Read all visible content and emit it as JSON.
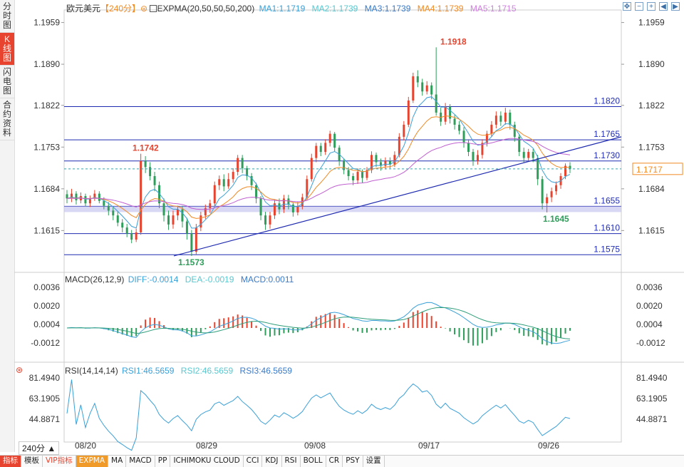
{
  "side_tabs": [
    {
      "label": "分时图",
      "active": false
    },
    {
      "label": "K线图",
      "active": true
    },
    {
      "label": "闪电图",
      "active": false
    },
    {
      "label": "合约资料",
      "active": false
    }
  ],
  "header": {
    "symbol": "欧元美元",
    "period": "【240分】",
    "indicator": "EXPMA(20,50,50,50,200)",
    "ma1": "MA1:1.1719",
    "ma2": "MA2:1.1739",
    "ma3": "MA3:1.1739",
    "ma4": "MA4:1.1739",
    "ma5": "MA5:1.1715"
  },
  "macd_header": {
    "name": "MACD(26,12,9)",
    "diff": "DIFF:-0.0014",
    "dea": "DEA:-0.0019",
    "macd": "MACD:0.0011"
  },
  "rsi_header": {
    "name": "RSI(14,14,14)",
    "rsi1": "RSI1:46.5659",
    "rsi2": "RSI2:46.5659",
    "rsi3": "RSI3:46.5659"
  },
  "colors": {
    "up": "#e8432e",
    "down": "#2e9e5a",
    "level": "#1f2bb0",
    "ma_blue": "#3aa0d8",
    "ma_orange": "#f08a24",
    "ma_purple": "#c060d0",
    "last_price": "#f08a24"
  },
  "chart_data": {
    "type": "candlestick",
    "price_axis": {
      "ticks": [
        "1.1959",
        "1.1890",
        "1.1822",
        "1.1753",
        "1.1684",
        "1.1615"
      ],
      "ylim": [
        1.1573,
        1.1959
      ]
    },
    "date_labels": [
      "08/20",
      "08/29",
      "09/08",
      "09/17",
      "09/26"
    ],
    "levels": [
      "1.1820",
      "1.1765",
      "1.1730",
      "1.1655",
      "1.1610",
      "1.1575"
    ],
    "annotations": {
      "high": "1.1918",
      "low": "1.1573",
      "left_peak": "1.1742",
      "recent_low": "1.1645"
    },
    "last_price": "1.1717",
    "macd_axis": {
      "ticks": [
        "0.0036",
        "0.0020",
        "0.0004",
        "-0.0012"
      ]
    },
    "rsi_axis": {
      "ticks": [
        "81.4940",
        "63.1905",
        "44.8871"
      ]
    },
    "candles": [
      [
        1.1675,
        1.1668,
        1.1682,
        1.166
      ],
      [
        1.1668,
        1.1676,
        1.1684,
        1.1662
      ],
      [
        1.1676,
        1.1665,
        1.168,
        1.1658
      ],
      [
        1.1665,
        1.1672,
        1.1678,
        1.166
      ],
      [
        1.1672,
        1.166,
        1.1676,
        1.1655
      ],
      [
        1.166,
        1.1668,
        1.1673,
        1.1654
      ],
      [
        1.1668,
        1.1676,
        1.1682,
        1.1664
      ],
      [
        1.1676,
        1.1664,
        1.168,
        1.166
      ],
      [
        1.1664,
        1.1656,
        1.167,
        1.165
      ],
      [
        1.1656,
        1.1648,
        1.1662,
        1.164
      ],
      [
        1.1648,
        1.164,
        1.1654,
        1.1632
      ],
      [
        1.164,
        1.1628,
        1.1646,
        1.1622
      ],
      [
        1.1628,
        1.162,
        1.1634,
        1.1612
      ],
      [
        1.162,
        1.161,
        1.1626,
        1.1604
      ],
      [
        1.161,
        1.16,
        1.1616,
        1.1594
      ],
      [
        1.16,
        1.1612,
        1.1618,
        1.1596
      ],
      [
        1.1612,
        1.173,
        1.1742,
        1.1608
      ],
      [
        1.173,
        1.172,
        1.1738,
        1.171
      ],
      [
        1.172,
        1.1705,
        1.1728,
        1.1698
      ],
      [
        1.1705,
        1.169,
        1.1712,
        1.168
      ],
      [
        1.169,
        1.166,
        1.1696,
        1.1652
      ],
      [
        1.166,
        1.164,
        1.1668,
        1.163
      ],
      [
        1.164,
        1.1625,
        1.1648,
        1.1616
      ],
      [
        1.1625,
        1.164,
        1.1648,
        1.1618
      ],
      [
        1.164,
        1.165,
        1.1656,
        1.1632
      ],
      [
        1.165,
        1.163,
        1.1656,
        1.162
      ],
      [
        1.163,
        1.161,
        1.1636,
        1.16
      ],
      [
        1.161,
        1.158,
        1.1616,
        1.1573
      ],
      [
        1.158,
        1.162,
        1.1626,
        1.1576
      ],
      [
        1.162,
        1.164,
        1.1646,
        1.1614
      ],
      [
        1.164,
        1.1652,
        1.1658,
        1.1634
      ],
      [
        1.1652,
        1.166,
        1.1666,
        1.1644
      ],
      [
        1.166,
        1.169,
        1.1696,
        1.1654
      ],
      [
        1.169,
        1.17,
        1.1706,
        1.1682
      ],
      [
        1.17,
        1.1688,
        1.1708,
        1.168
      ],
      [
        1.1688,
        1.17,
        1.171,
        1.1684
      ],
      [
        1.17,
        1.1712,
        1.1718,
        1.1694
      ],
      [
        1.1712,
        1.1735,
        1.174,
        1.1706
      ],
      [
        1.1735,
        1.1718,
        1.174,
        1.171
      ],
      [
        1.1718,
        1.1705,
        1.1722,
        1.1698
      ],
      [
        1.1705,
        1.169,
        1.171,
        1.1682
      ],
      [
        1.169,
        1.1668,
        1.1694,
        1.166
      ],
      [
        1.1668,
        1.164,
        1.1672,
        1.1632
      ],
      [
        1.164,
        1.1625,
        1.1646,
        1.1616
      ],
      [
        1.1625,
        1.164,
        1.1646,
        1.1618
      ],
      [
        1.164,
        1.166,
        1.1666,
        1.1634
      ],
      [
        1.166,
        1.165,
        1.1668,
        1.1642
      ],
      [
        1.165,
        1.1668,
        1.1674,
        1.1644
      ],
      [
        1.1668,
        1.1658,
        1.1674,
        1.165
      ],
      [
        1.1658,
        1.1645,
        1.1662,
        1.1638
      ],
      [
        1.1645,
        1.1655,
        1.1662,
        1.164
      ],
      [
        1.1655,
        1.167,
        1.1676,
        1.165
      ],
      [
        1.167,
        1.17,
        1.1706,
        1.1666
      ],
      [
        1.17,
        1.1735,
        1.1742,
        1.1696
      ],
      [
        1.1735,
        1.1755,
        1.176,
        1.1728
      ],
      [
        1.1755,
        1.1745,
        1.176,
        1.1738
      ],
      [
        1.1745,
        1.176,
        1.1766,
        1.174
      ],
      [
        1.176,
        1.1775,
        1.178,
        1.1754
      ],
      [
        1.1775,
        1.1752,
        1.1778,
        1.1746
      ],
      [
        1.1752,
        1.173,
        1.1756,
        1.1722
      ],
      [
        1.173,
        1.1715,
        1.1734,
        1.1708
      ],
      [
        1.1715,
        1.1705,
        1.172,
        1.1698
      ],
      [
        1.1705,
        1.1698,
        1.171,
        1.169
      ],
      [
        1.1698,
        1.1712,
        1.1718,
        1.1692
      ],
      [
        1.1712,
        1.1702,
        1.1716,
        1.1694
      ],
      [
        1.1702,
        1.1715,
        1.172,
        1.1698
      ],
      [
        1.1715,
        1.174,
        1.1746,
        1.171
      ],
      [
        1.174,
        1.1728,
        1.1744,
        1.172
      ],
      [
        1.1728,
        1.1722,
        1.1734,
        1.1714
      ],
      [
        1.1722,
        1.173,
        1.1736,
        1.1716
      ],
      [
        1.173,
        1.1724,
        1.1736,
        1.1718
      ],
      [
        1.1724,
        1.174,
        1.1746,
        1.172
      ],
      [
        1.174,
        1.177,
        1.1776,
        1.1736
      ],
      [
        1.177,
        1.179,
        1.1796,
        1.1764
      ],
      [
        1.179,
        1.183,
        1.1836,
        1.1786
      ],
      [
        1.183,
        1.187,
        1.1876,
        1.1826
      ],
      [
        1.187,
        1.186,
        1.188,
        1.1852
      ],
      [
        1.186,
        1.1845,
        1.1866,
        1.1838
      ],
      [
        1.1845,
        1.1855,
        1.1862,
        1.184
      ],
      [
        1.1855,
        1.184,
        1.186,
        1.1832
      ],
      [
        1.184,
        1.181,
        1.1918,
        1.1805
      ],
      [
        1.181,
        1.1795,
        1.1818,
        1.1788
      ],
      [
        1.1795,
        1.182,
        1.1826,
        1.179
      ],
      [
        1.182,
        1.18,
        1.1824,
        1.1792
      ],
      [
        1.18,
        1.179,
        1.1806,
        1.1782
      ],
      [
        1.179,
        1.178,
        1.1796,
        1.1774
      ],
      [
        1.178,
        1.176,
        1.1786,
        1.1752
      ],
      [
        1.176,
        1.1745,
        1.1766,
        1.1738
      ],
      [
        1.1745,
        1.173,
        1.175,
        1.1722
      ],
      [
        1.173,
        1.174,
        1.1748,
        1.1724
      ],
      [
        1.174,
        1.176,
        1.1766,
        1.1734
      ],
      [
        1.176,
        1.1775,
        1.178,
        1.1754
      ],
      [
        1.1775,
        1.179,
        1.1796,
        1.177
      ],
      [
        1.179,
        1.1805,
        1.1812,
        1.1784
      ],
      [
        1.1805,
        1.1795,
        1.1812,
        1.1788
      ],
      [
        1.1795,
        1.181,
        1.1818,
        1.179
      ],
      [
        1.181,
        1.179,
        1.1815,
        1.1782
      ],
      [
        1.179,
        1.177,
        1.1795,
        1.1762
      ],
      [
        1.177,
        1.1745,
        1.1775,
        1.1738
      ],
      [
        1.1745,
        1.1735,
        1.1752,
        1.1728
      ],
      [
        1.1735,
        1.1745,
        1.175,
        1.173
      ],
      [
        1.1745,
        1.1735,
        1.175,
        1.1728
      ],
      [
        1.1735,
        1.17,
        1.174,
        1.169
      ],
      [
        1.17,
        1.166,
        1.1705,
        1.165
      ],
      [
        1.166,
        1.167,
        1.1676,
        1.1645
      ],
      [
        1.167,
        1.168,
        1.1686,
        1.1662
      ],
      [
        1.168,
        1.169,
        1.1696,
        1.1674
      ],
      [
        1.169,
        1.1705,
        1.171,
        1.1684
      ],
      [
        1.1705,
        1.1722,
        1.1726,
        1.17
      ],
      [
        1.1722,
        1.1717,
        1.1728,
        1.171
      ]
    ]
  },
  "bottom_tabs": [
    {
      "label": "指标",
      "style": "red"
    },
    {
      "label": "模板",
      "style": ""
    },
    {
      "label": "VIP指标",
      "style": "vip"
    },
    {
      "label": "EXPMA",
      "style": "orange"
    },
    {
      "label": "MA",
      "style": ""
    },
    {
      "label": "MACD",
      "style": ""
    },
    {
      "label": "PP",
      "style": ""
    },
    {
      "label": "ICHIMOKU CLOUD",
      "style": ""
    },
    {
      "label": "CCI",
      "style": ""
    },
    {
      "label": "KDJ",
      "style": ""
    },
    {
      "label": "RSI",
      "style": ""
    },
    {
      "label": "BOLL",
      "style": ""
    },
    {
      "label": "CR",
      "style": ""
    },
    {
      "label": "PSY",
      "style": ""
    },
    {
      "label": "设置",
      "style": ""
    }
  ],
  "period_selector": "240分 ▲"
}
